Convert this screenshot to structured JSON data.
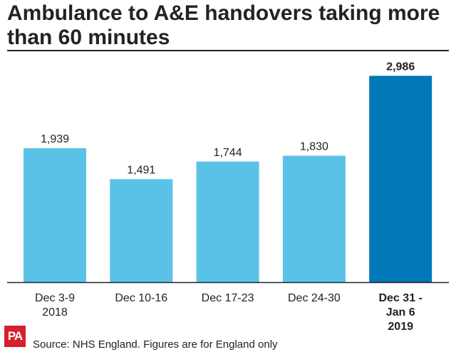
{
  "chart_data": {
    "type": "bar",
    "title": "Ambulance to A&E handovers taking more than 60 minutes",
    "categories": [
      [
        "Dec 3-9",
        "2018"
      ],
      [
        "Dec 10-16"
      ],
      [
        "Dec 17-23"
      ],
      [
        "Dec 24-30"
      ],
      [
        "Dec 31 -",
        "Jan 6",
        "2019"
      ]
    ],
    "values": [
      1939,
      1491,
      1744,
      1830,
      2986
    ],
    "value_labels": [
      "1,939",
      "1,491",
      "1,744",
      "1,830",
      "2,986"
    ],
    "highlight_index": 4,
    "colors": {
      "bar": "#5bc2e7",
      "highlight": "#0077b6",
      "text": "#222222"
    },
    "ylim": [
      0,
      3000
    ],
    "grid": false,
    "legend": "none"
  },
  "footer": {
    "logo": "PA",
    "source": "Source: NHS England. Figures are for England only"
  }
}
